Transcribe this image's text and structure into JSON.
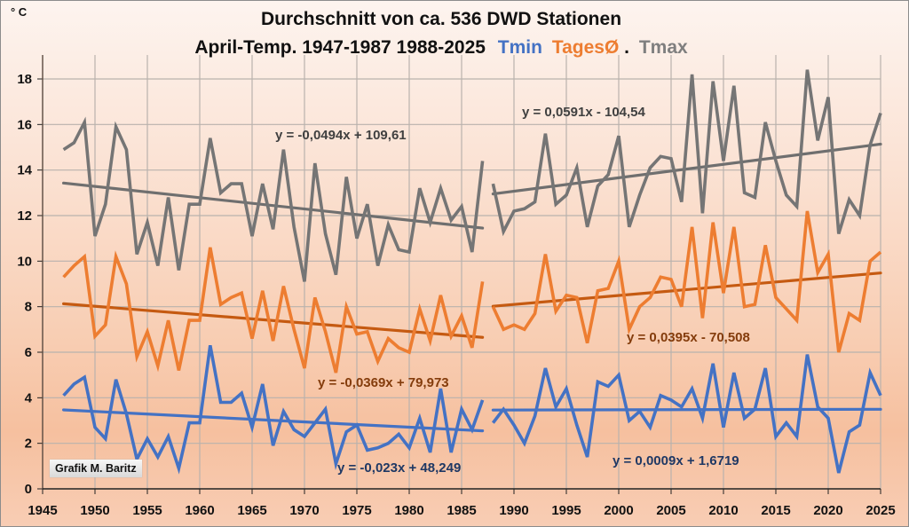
{
  "chart_data": {
    "type": "line",
    "title": "Durchschnitt von ca. 536 DWD Stationen",
    "subtitle_prefix": "April-Temp. 1947-1987 1988-2025",
    "subtitle_legend": [
      {
        "label": "Tmin",
        "color": "#4472c4"
      },
      {
        "label": "TagesØ",
        "color": "#ed7d31"
      },
      {
        "label": ".",
        "color": "#111111"
      },
      {
        "label": "Tmax",
        "color": "#7f7f7f"
      }
    ],
    "ylabel": "° C",
    "xlabel": "",
    "xlim": [
      1945,
      2025
    ],
    "ylim": [
      0,
      19
    ],
    "x_ticks": [
      1945,
      1950,
      1955,
      1960,
      1965,
      1970,
      1975,
      1980,
      1985,
      1990,
      1995,
      2000,
      2005,
      2010,
      2015,
      2020,
      2025
    ],
    "y_ticks": [
      0,
      2,
      4,
      6,
      8,
      10,
      12,
      14,
      16,
      18
    ],
    "grid": true,
    "credit": "Grafik M. Baritz",
    "periods": [
      {
        "start": 1947,
        "end": 1987
      },
      {
        "start": 1988,
        "end": 2025
      }
    ],
    "series": [
      {
        "name": "Tmax",
        "color": "#757575",
        "trend_color": "#6f6f6f",
        "segments": [
          {
            "x_start": 1947,
            "values": [
              14.9,
              15.2,
              16.1,
              11.1,
              12.5,
              15.9,
              14.9,
              10.3,
              11.7,
              9.8,
              12.8,
              9.6,
              12.5,
              12.5,
              15.4,
              13.0,
              13.4,
              13.4,
              11.1,
              13.4,
              11.4,
              14.9,
              11.5,
              9.1,
              14.3,
              11.2,
              9.4,
              13.7,
              11.0,
              12.5,
              9.8,
              11.6,
              10.5,
              10.4,
              13.2,
              11.7,
              13.2,
              11.8,
              12.4,
              10.4,
              14.4
            ],
            "trend": {
              "slope": -0.0494,
              "intercept": 109.61,
              "label": "y = -0,0494x + 109,61",
              "label_color": "#404040"
            }
          },
          {
            "x_start": 1988,
            "values": [
              13.4,
              11.3,
              12.2,
              12.3,
              12.6,
              15.6,
              12.5,
              12.9,
              14.1,
              11.5,
              13.3,
              13.8,
              15.5,
              11.5,
              12.9,
              14.1,
              14.6,
              14.5,
              12.6,
              18.2,
              12.1,
              17.9,
              14.4,
              17.7,
              13.0,
              12.8,
              16.1,
              14.4,
              12.9,
              12.4,
              18.4,
              15.3,
              17.2,
              11.2,
              12.7,
              12.0,
              15.1,
              16.5
            ],
            "trend": {
              "slope": 0.0591,
              "intercept": -104.54,
              "label": "y = 0,0591x - 104,54",
              "label_color": "#404040"
            }
          }
        ]
      },
      {
        "name": "TagesØ",
        "color": "#ed7d31",
        "trend_color": "#c55a11",
        "segments": [
          {
            "x_start": 1947,
            "values": [
              9.3,
              9.8,
              10.2,
              6.7,
              7.2,
              10.2,
              9.0,
              5.8,
              6.9,
              5.4,
              7.4,
              5.2,
              7.4,
              7.4,
              10.6,
              8.1,
              8.4,
              8.6,
              6.6,
              8.7,
              6.5,
              8.9,
              7.0,
              5.3,
              8.4,
              6.9,
              5.1,
              8.0,
              6.8,
              6.9,
              5.6,
              6.6,
              6.2,
              6.0,
              7.9,
              6.5,
              8.5,
              6.7,
              7.6,
              6.2,
              9.1
            ],
            "trend": {
              "slope": -0.0369,
              "intercept": 79.973,
              "label": "y = -0,0369x + 79,973",
              "label_color": "#843c0c"
            }
          },
          {
            "x_start": 1988,
            "values": [
              8.0,
              7.0,
              7.2,
              7.0,
              7.7,
              10.3,
              7.8,
              8.5,
              8.4,
              6.4,
              8.7,
              8.8,
              10.0,
              7.0,
              8.0,
              8.4,
              9.3,
              9.2,
              8.0,
              11.5,
              7.5,
              11.7,
              8.6,
              11.5,
              8.0,
              8.1,
              10.7,
              8.4,
              7.9,
              7.4,
              12.2,
              9.5,
              10.3,
              6.0,
              7.7,
              7.4,
              10.0,
              10.4
            ],
            "trend": {
              "slope": 0.0395,
              "intercept": -70.508,
              "label": "y = 0,0395x - 70,508",
              "label_color": "#843c0c"
            }
          }
        ]
      },
      {
        "name": "Tmin",
        "color": "#4472c4",
        "trend_color": "#4472c4",
        "segments": [
          {
            "x_start": 1947,
            "values": [
              4.1,
              4.6,
              4.9,
              2.7,
              2.2,
              4.8,
              3.3,
              1.3,
              2.2,
              1.4,
              2.3,
              0.9,
              2.9,
              2.9,
              6.3,
              3.8,
              3.8,
              4.2,
              2.7,
              4.6,
              1.9,
              3.4,
              2.6,
              2.3,
              2.9,
              3.5,
              1.1,
              2.5,
              2.8,
              1.7,
              1.8,
              2.0,
              2.4,
              1.8,
              3.1,
              1.6,
              4.4,
              1.6,
              3.5,
              2.6,
              3.9
            ],
            "trend": {
              "slope": -0.023,
              "intercept": 48.249,
              "label": "y = -0,023x + 48,249",
              "label_color": "#1f3864"
            }
          },
          {
            "x_start": 1988,
            "values": [
              2.9,
              3.5,
              2.8,
              2.0,
              3.2,
              5.3,
              3.6,
              4.4,
              2.8,
              1.4,
              4.7,
              4.5,
              5.0,
              3.0,
              3.4,
              2.7,
              4.1,
              3.9,
              3.6,
              4.4,
              3.1,
              5.5,
              2.7,
              5.1,
              3.1,
              3.5,
              5.3,
              2.3,
              2.9,
              2.3,
              5.9,
              3.6,
              3.1,
              0.7,
              2.5,
              2.8,
              5.1,
              4.1
            ],
            "trend": {
              "slope": 0.0009,
              "intercept": 1.6719,
              "label": "y = 0,0009x + 1,6719",
              "label_color": "#1f3864"
            }
          }
        ]
      }
    ]
  }
}
